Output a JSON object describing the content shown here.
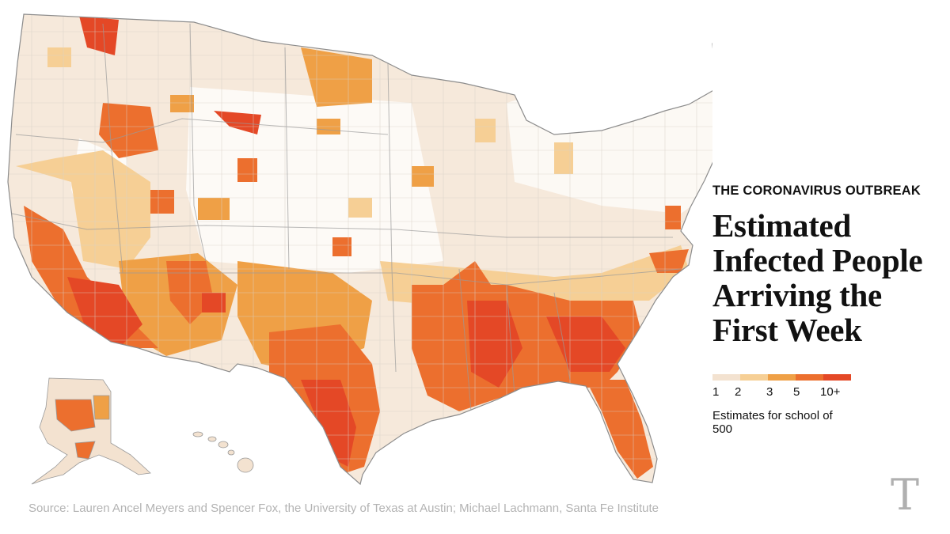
{
  "kicker": "THE CORONAVIRUS OUTBREAK",
  "title": "Estimated Infected People Arriving the First Week",
  "legend": {
    "colors": [
      "#f3e2d0",
      "#f6cf95",
      "#efa046",
      "#ec6f2e",
      "#e44826"
    ],
    "labels": [
      "1",
      "2",
      "3",
      "5",
      "10+"
    ],
    "note": "Estimates for school of 500"
  },
  "source": "Source: Lauren Ancel Meyers and Spencer Fox, the University of Texas at Austin; Michael Lachmann, Santa Fe Institute",
  "logo": {
    "icon": "nyt-t-logo-icon",
    "glyph": "T"
  },
  "map": {
    "regions": [
      "contiguous-us",
      "alaska",
      "hawaii"
    ],
    "pattern": "Highest estimates concentrated across the South: Texas, Louisiana, Mississippi, Alabama, Georgia, South Carolina, Florida, Arizona and southern California; lowest across the Northeast, Upper Midwest and Great Plains."
  }
}
